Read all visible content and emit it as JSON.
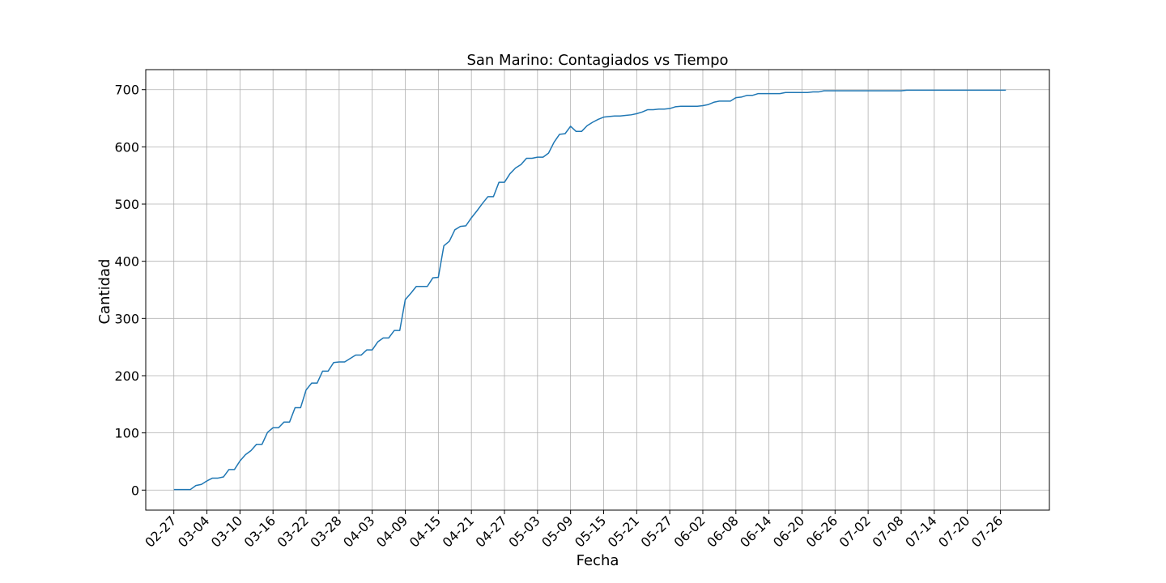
{
  "chart_data": {
    "type": "line",
    "title": "San Marino: Contagiados vs Tiempo",
    "xlabel": "Fecha",
    "ylabel": "Cantidad",
    "grid": true,
    "ylim": [
      -35,
      735
    ],
    "y_ticks": [
      0,
      100,
      200,
      300,
      400,
      500,
      600,
      700
    ],
    "x_ticks": [
      "02-27",
      "03-04",
      "03-10",
      "03-16",
      "03-22",
      "03-28",
      "04-03",
      "04-09",
      "04-15",
      "04-21",
      "04-27",
      "05-03",
      "05-09",
      "05-15",
      "05-21",
      "05-27",
      "06-02",
      "06-08",
      "06-14",
      "06-20",
      "06-26",
      "07-02",
      "07-08",
      "07-14",
      "07-20",
      "07-26"
    ],
    "series": [
      {
        "color": "#1f77b4",
        "x": [
          "02-27",
          "02-28",
          "02-29",
          "03-01",
          "03-02",
          "03-03",
          "03-04",
          "03-05",
          "03-06",
          "03-07",
          "03-08",
          "03-09",
          "03-10",
          "03-11",
          "03-12",
          "03-13",
          "03-14",
          "03-15",
          "03-16",
          "03-17",
          "03-18",
          "03-19",
          "03-20",
          "03-21",
          "03-22",
          "03-23",
          "03-24",
          "03-25",
          "03-26",
          "03-27",
          "03-28",
          "03-29",
          "03-30",
          "03-31",
          "04-01",
          "04-02",
          "04-03",
          "04-04",
          "04-05",
          "04-06",
          "04-07",
          "04-08",
          "04-09",
          "04-10",
          "04-11",
          "04-12",
          "04-13",
          "04-14",
          "04-15",
          "04-16",
          "04-17",
          "04-18",
          "04-19",
          "04-20",
          "04-21",
          "04-22",
          "04-23",
          "04-24",
          "04-25",
          "04-26",
          "04-27",
          "04-28",
          "04-29",
          "04-30",
          "05-01",
          "05-02",
          "05-03",
          "05-04",
          "05-05",
          "05-06",
          "05-07",
          "05-08",
          "05-09",
          "05-10",
          "05-11",
          "05-12",
          "05-13",
          "05-14",
          "05-15",
          "05-16",
          "05-17",
          "05-18",
          "05-19",
          "05-20",
          "05-21",
          "05-22",
          "05-23",
          "05-24",
          "05-25",
          "05-26",
          "05-27",
          "05-28",
          "05-29",
          "05-30",
          "05-31",
          "06-01",
          "06-02",
          "06-03",
          "06-04",
          "06-05",
          "06-06",
          "06-07",
          "06-08",
          "06-09",
          "06-10",
          "06-11",
          "06-12",
          "06-13",
          "06-14",
          "06-15",
          "06-16",
          "06-17",
          "06-18",
          "06-19",
          "06-20",
          "06-21",
          "06-22",
          "06-23",
          "06-24",
          "06-25",
          "06-26",
          "06-27",
          "06-28",
          "06-29",
          "06-30",
          "07-01",
          "07-02",
          "07-03",
          "07-04",
          "07-05",
          "07-06",
          "07-07",
          "07-08",
          "07-09",
          "07-10",
          "07-11",
          "07-12",
          "07-13",
          "07-14",
          "07-15",
          "07-16",
          "07-17",
          "07-18",
          "07-19",
          "07-20",
          "07-21",
          "07-22",
          "07-23",
          "07-24",
          "07-25",
          "07-26",
          "07-27"
        ],
        "y": [
          1,
          1,
          1,
          1,
          8,
          10,
          16,
          21,
          21,
          23,
          36,
          36,
          51,
          62,
          69,
          80,
          80,
          101,
          109,
          109,
          119,
          119,
          144,
          144,
          175,
          187,
          187,
          208,
          208,
          223,
          224,
          224,
          230,
          236,
          236,
          245,
          245,
          259,
          266,
          266,
          279,
          279,
          333,
          344,
          356,
          356,
          356,
          371,
          372,
          427,
          435,
          455,
          461,
          462,
          476,
          488,
          501,
          513,
          513,
          538,
          538,
          553,
          563,
          569,
          580,
          580,
          582,
          582,
          589,
          608,
          622,
          623,
          636,
          627,
          627,
          637,
          643,
          648,
          652,
          653,
          654,
          654,
          655,
          656,
          658,
          661,
          665,
          665,
          666,
          666,
          667,
          670,
          671,
          671,
          671,
          671,
          672,
          674,
          678,
          680,
          680,
          680,
          686,
          687,
          690,
          690,
          693,
          693,
          693,
          693,
          693,
          695,
          695,
          695,
          695,
          695,
          696,
          696,
          698,
          698,
          698,
          698,
          698,
          698,
          698,
          698,
          698,
          698,
          698,
          698,
          698,
          698,
          698,
          699,
          699,
          699,
          699,
          699,
          699,
          699,
          699,
          699,
          699,
          699,
          699,
          699,
          699,
          699,
          699,
          699,
          699,
          699
        ]
      }
    ]
  }
}
